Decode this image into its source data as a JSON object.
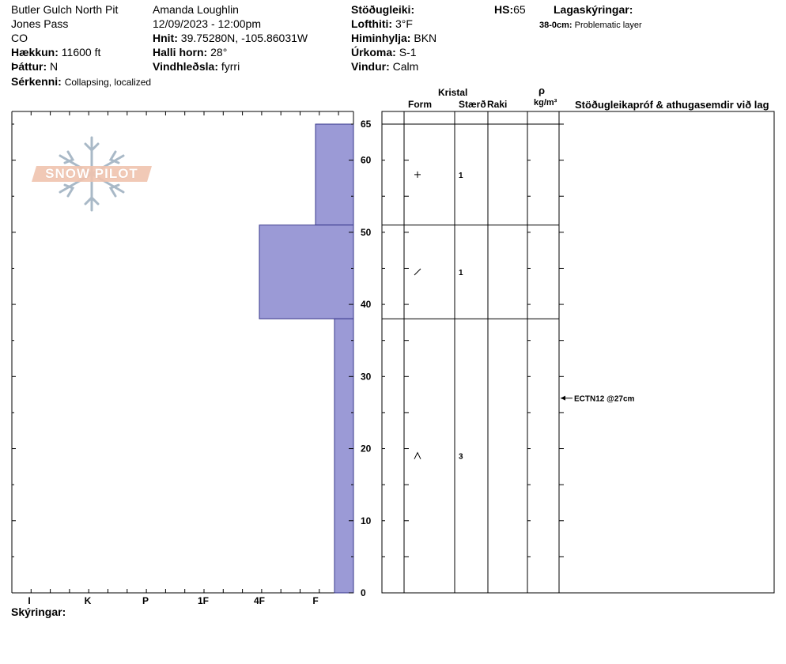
{
  "header": {
    "pit_name": "Butler Gulch North Pit",
    "area": "Jones Pass",
    "state": "CO",
    "elevation_label": "Hækkun:",
    "elevation": "11600 ft",
    "aspect_label": "Þáttur:",
    "aspect": "N",
    "feature_label": "Sérkenni:",
    "feature": "Collapsing, localized",
    "observer": "Amanda Loughlin",
    "datetime": "12/09/2023 - 12:00pm",
    "coords_label": "Hnit:",
    "coords": "39.75280N, -105.86031W",
    "slope_label": "Halli horn:",
    "slope": "28°",
    "wind_loading_label": "Vindhleðsla:",
    "wind_loading": "fyrri",
    "stability_label": "Stöðugleiki:",
    "stability": "",
    "air_temp_label": "Lofthiti:",
    "air_temp": "3°F",
    "sky_label": "Himinhylja:",
    "sky": "BKN",
    "precip_label": "Úrkoma:",
    "precip": "S-1",
    "wind_label": "Vindur:",
    "wind": "Calm",
    "hs_label": "HS:",
    "hs": "65",
    "layer_notes_label": "Lagaskýringar:",
    "layer_note_depth": "38-0cm:",
    "layer_note_text": "Problematic layer"
  },
  "logo": {
    "text": "SNOW PILOT"
  },
  "columns": {
    "crystal": "Kristal",
    "form": "Form",
    "size": "Stærð",
    "moisture": "Raki",
    "rho": "ρ",
    "density_unit": "kg/m³",
    "tests_notes": "Stöðugleikapróf & athugasemdir við lag"
  },
  "footer": {
    "notes_label": "Skýringar:"
  },
  "chart_data": {
    "type": "snow_profile",
    "hardness_scale": [
      "I",
      "K",
      "P",
      "1F",
      "4F",
      "F"
    ],
    "depth_ticks": [
      0,
      10,
      20,
      30,
      40,
      50,
      60,
      65
    ],
    "depth_range": [
      0,
      65
    ],
    "layers": [
      {
        "top": 65,
        "bottom": 51,
        "hardness": "F",
        "form_icon": "plus",
        "size": "1"
      },
      {
        "top": 51,
        "bottom": 38,
        "hardness": "4F",
        "form_icon": "slash",
        "size": "1"
      },
      {
        "top": 38,
        "bottom": 0,
        "hardness": "F+",
        "form_icon": "caret",
        "size": "3"
      }
    ],
    "tests": [
      {
        "depth": 27,
        "label": "ECTN12 @27cm"
      }
    ],
    "colors": {
      "layer_fill": "#9b9ad6",
      "layer_stroke": "#3a3a8c"
    }
  }
}
